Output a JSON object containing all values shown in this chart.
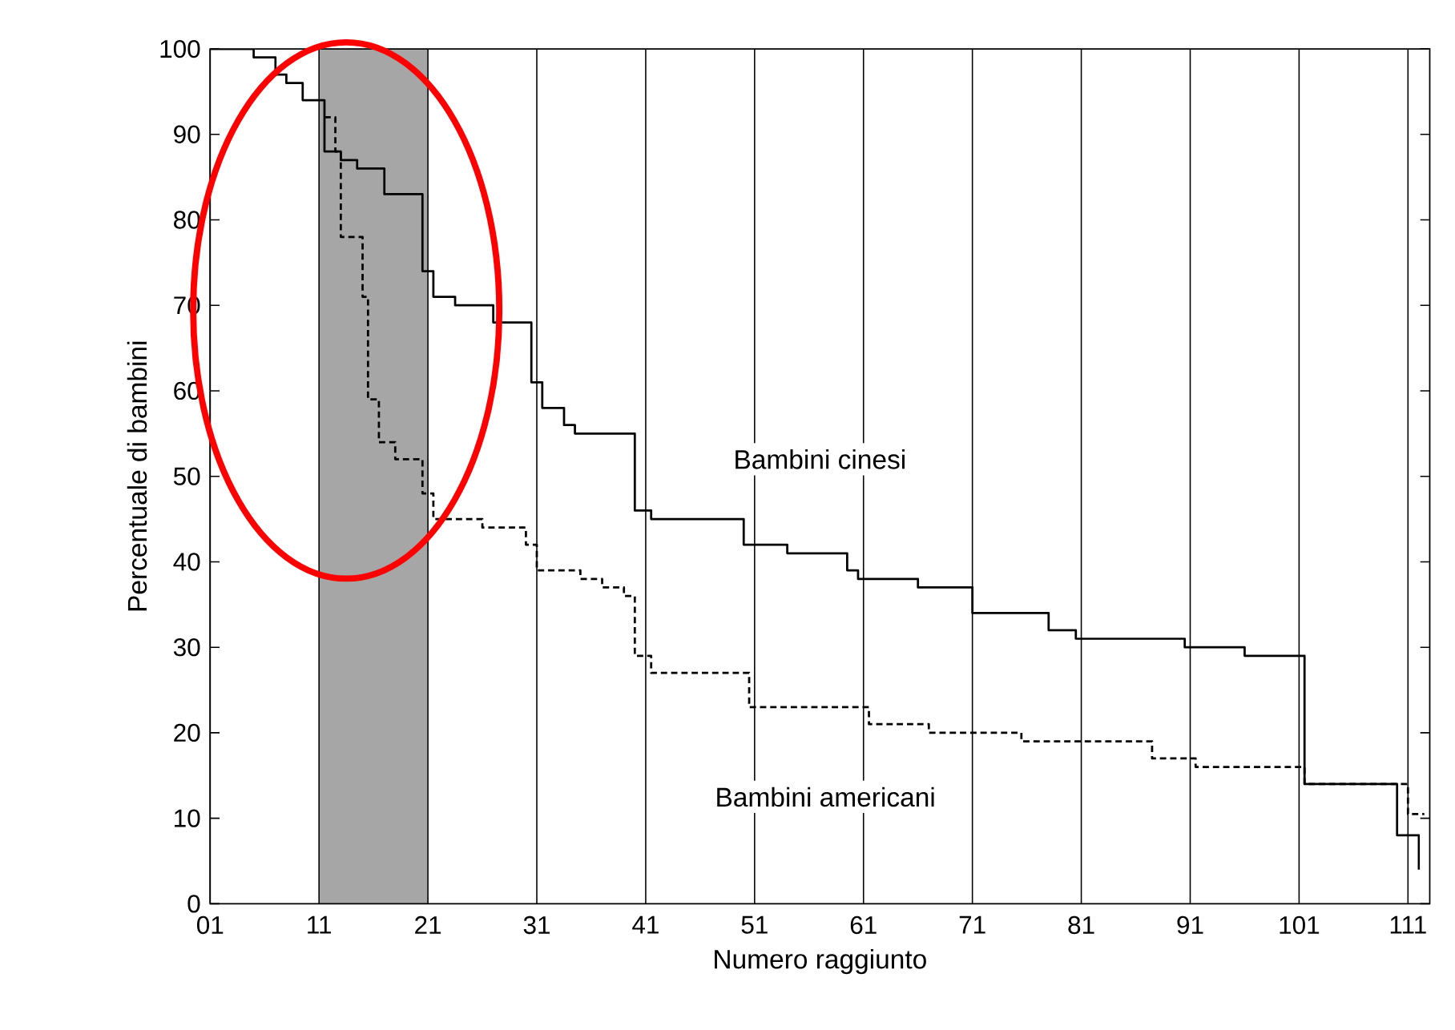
{
  "chart_data": {
    "type": "step",
    "xlabel": "Numero raggiunto",
    "ylabel": "Percentuale di bambini",
    "xlim": [
      1,
      113
    ],
    "ylim": [
      0,
      100
    ],
    "xticks": [
      {
        "value": 1,
        "label": "01"
      },
      11,
      21,
      31,
      41,
      51,
      61,
      71,
      81,
      91,
      101,
      111
    ],
    "yticks": [
      0,
      10,
      20,
      30,
      40,
      50,
      60,
      70,
      80,
      90,
      100
    ],
    "grid": "x",
    "marker": "none",
    "bands": [
      {
        "axis": "x",
        "from": 11,
        "to": 21,
        "color": "#a6a6a6"
      }
    ],
    "series": [
      {
        "name": "Bambini cinesi",
        "color": "#000000",
        "line_style": "solid",
        "x": [
          1,
          5,
          7,
          8,
          9.5,
          11.5,
          13,
          14.5,
          17,
          20.5,
          21.5,
          23.5,
          27,
          30.5,
          31.5,
          33.5,
          34.5,
          40,
          41.5,
          50,
          54,
          59.5,
          60.5,
          66,
          71,
          78,
          80.5,
          90.5,
          96,
          101.5,
          110,
          112
        ],
        "values": [
          100,
          99,
          97,
          96,
          94,
          88,
          87,
          86,
          83,
          74,
          71,
          70,
          68,
          61,
          58,
          56,
          55,
          46,
          45,
          42,
          41,
          39,
          38,
          37,
          34,
          32,
          31,
          30,
          29,
          14,
          8,
          4
        ]
      },
      {
        "name": "Bambini americani",
        "color": "#000000",
        "line_style": "dashed",
        "x": [
          11.5,
          12.5,
          13,
          15,
          15.5,
          16.5,
          18,
          20.5,
          21.5,
          26,
          30,
          31,
          35,
          37,
          39,
          40,
          41.5,
          50.5,
          61.5,
          67,
          75.5,
          87.5,
          91.5,
          101.5,
          111,
          112.5
        ],
        "values": [
          92,
          88,
          78,
          71,
          59,
          54,
          52,
          48,
          45,
          44,
          42,
          39,
          38,
          37,
          36,
          29,
          27,
          23,
          21,
          20,
          19,
          17,
          16,
          14,
          10.5,
          10.5
        ]
      }
    ]
  }
}
